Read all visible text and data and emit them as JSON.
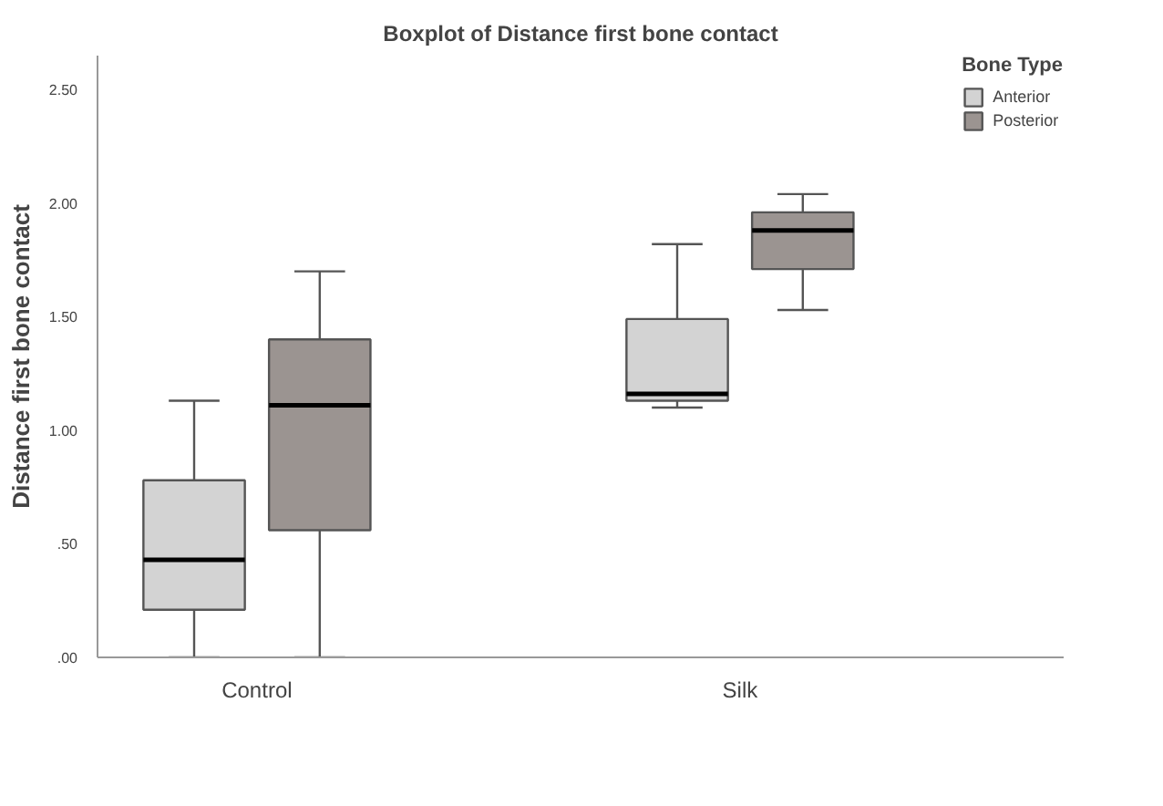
{
  "chart_data": {
    "type": "box",
    "title": "Boxplot of Distance first bone contact",
    "ylabel": "Distance first bone contact",
    "legend_title": "Bone Type",
    "categories": [
      "Control",
      "Silk"
    ],
    "series": [
      {
        "name": "Anterior",
        "color": "#d3d3d3",
        "boxes": [
          {
            "low": 0,
            "q1": 0.21,
            "median": 0.43,
            "q3": 0.78,
            "high": 1.13
          },
          {
            "low": 1.1,
            "q1": 1.13,
            "median": 1.16,
            "q3": 1.49,
            "high": 1.82
          }
        ]
      },
      {
        "name": "Posterior",
        "color": "#9b9491",
        "boxes": [
          {
            "low": 0,
            "q1": 0.56,
            "median": 1.11,
            "q3": 1.4,
            "high": 1.7
          },
          {
            "low": 1.53,
            "q1": 1.71,
            "median": 1.88,
            "q3": 1.96,
            "high": 2.04
          }
        ]
      }
    ],
    "ylim": [
      0,
      2.65
    ],
    "yticks": [
      {
        "value": 0,
        "label": ".00"
      },
      {
        "value": 0.5,
        "label": ".50"
      },
      {
        "value": 1,
        "label": "1.00"
      },
      {
        "value": 1.5,
        "label": "1.50"
      },
      {
        "value": 2,
        "label": "2.00"
      },
      {
        "value": 2.5,
        "label": "2.50"
      }
    ],
    "grid": false,
    "legend": "top right"
  }
}
